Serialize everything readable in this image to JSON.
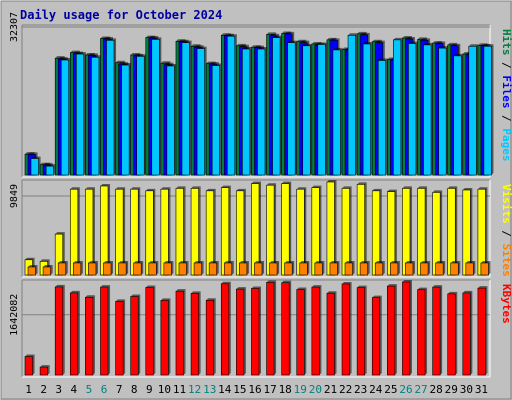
{
  "chart_data": {
    "type": "bar",
    "title": "Daily usage for October 2024",
    "categories": [
      "1",
      "2",
      "3",
      "4",
      "5",
      "6",
      "7",
      "8",
      "9",
      "10",
      "11",
      "12",
      "13",
      "14",
      "15",
      "16",
      "17",
      "18",
      "19",
      "20",
      "21",
      "22",
      "23",
      "24",
      "25",
      "26",
      "27",
      "28",
      "29",
      "30",
      "31"
    ],
    "weekend_days": [
      "5",
      "6",
      "12",
      "13",
      "19",
      "20",
      "26",
      "27"
    ],
    "panels": [
      {
        "id": "hits_files_pages",
        "ylabel": [
          "Pages",
          "Files",
          "Hits"
        ],
        "y_tick_label": "32307",
        "y_tick_value": 32307,
        "series": [
          {
            "name": "Hits",
            "color": "#008040",
            "values": [
              4550,
              2240,
              25500,
              26700,
              26200,
              29800,
              24500,
              26200,
              30000,
              24400,
              29200,
              28100,
              24300,
              30500,
              28200,
              27900,
              30700,
              30900,
              29100,
              28600,
              29500,
              27400,
              30800,
              29100,
              25200,
              29900,
              29600,
              28800,
              28400,
              26400,
              28300
            ]
          },
          {
            "name": "Files",
            "color": "#0000ff",
            "values": [
              4500,
              2200,
              25300,
              26500,
              26100,
              29700,
              24200,
              26000,
              29900,
              24100,
              29100,
              27900,
              24200,
              30400,
              28000,
              27800,
              30400,
              30800,
              28900,
              28400,
              29400,
              27300,
              30600,
              28900,
              25100,
              29700,
              29400,
              28700,
              28200,
              26300,
              28200
            ]
          },
          {
            "name": "Pages",
            "color": "#00c8ff",
            "values": [
              3600,
              1940,
              25100,
              26400,
              25700,
              29400,
              24000,
              25900,
              29600,
              23800,
              28900,
              27600,
              23900,
              30300,
              27500,
              27500,
              30000,
              28900,
              28200,
              28500,
              27300,
              30500,
              28600,
              25000,
              29500,
              28700,
              28400,
              27700,
              26000,
              28100,
              28100
            ]
          }
        ]
      },
      {
        "id": "visits_sites",
        "ylabel": [
          "Sites",
          "Visits"
        ],
        "y_tick_label": "9849",
        "y_tick_value": 9849,
        "series": [
          {
            "name": "Visits",
            "color": "#ffff00",
            "values": [
              1900,
              1700,
              5100,
              10700,
              10700,
              11100,
              10700,
              10700,
              10500,
              10700,
              10800,
              10800,
              10500,
              10900,
              10500,
              11400,
              11200,
              11400,
              10700,
              10900,
              11600,
              10800,
              11300,
              10500,
              10400,
              10800,
              10800,
              10300,
              10800,
              10600,
              10700
            ]
          },
          {
            "name": "Sites",
            "color": "#ff8000",
            "values": [
              1000,
              1000,
              1500,
              1500,
              1500,
              1500,
              1500,
              1500,
              1500,
              1500,
              1500,
              1500,
              1500,
              1500,
              1500,
              1500,
              1500,
              1500,
              1500,
              1500,
              1500,
              1500,
              1500,
              1500,
              1500,
              1500,
              1500,
              1500,
              1500,
              1500,
              1500
            ]
          }
        ]
      },
      {
        "id": "kbytes",
        "ylabel": [
          "KBytes"
        ],
        "y_tick_label": "1642082",
        "y_tick_value": 1642082,
        "series": [
          {
            "name": "KBytes",
            "color": "#ff0000",
            "values": [
              503000,
              216000,
              2401000,
              2237000,
              2119000,
              2396000,
              2007000,
              2141000,
              2385000,
              2035000,
              2285000,
              2224000,
              2037000,
              2486000,
              2342000,
              2359000,
              2525000,
              2515000,
              2330000,
              2396000,
              2230000,
              2482000,
              2381000,
              2109000,
              2422000,
              2535000,
              2327000,
              2396000,
              2211000,
              2237000,
              2368000
            ]
          }
        ]
      }
    ]
  }
}
